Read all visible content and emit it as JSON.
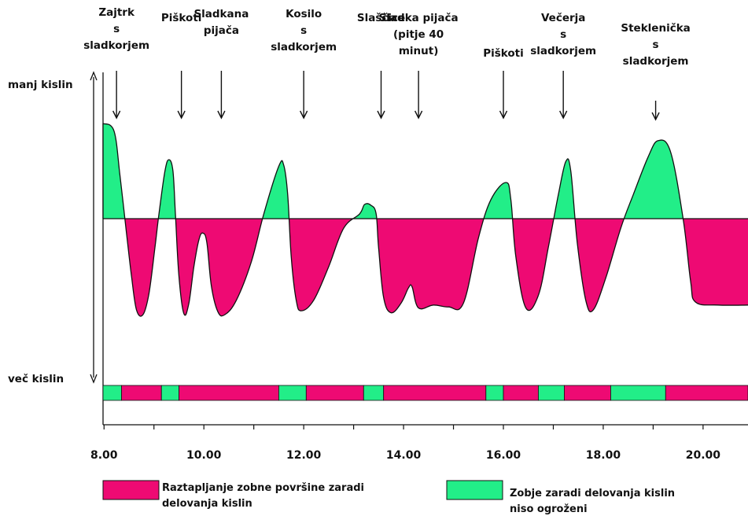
{
  "chart_data": {
    "type": "area",
    "title": "",
    "xlabel": "",
    "ylabel": "",
    "y_axis_labels": {
      "top": "manj kislin",
      "bottom": "več kislin"
    },
    "x_ticks": [
      "8.00",
      "10.00",
      "12.00",
      "14.00",
      "16.00",
      "18.00",
      "20.00"
    ],
    "x_range_hours": [
      7.98,
      20.9
    ],
    "y_range": [
      -1,
      1
    ],
    "baseline_value": 0,
    "colors": {
      "above": "#22ee88",
      "below": "#ee0a73",
      "outline": "#111111"
    },
    "events": [
      {
        "label": "Zajtrk\ns\nsladkorjem",
        "time": 8.25
      },
      {
        "label": "Piškoti",
        "time": 9.55
      },
      {
        "label": "Sladkana\npijača",
        "time": 10.35
      },
      {
        "label": "Kosilo\ns\nsladkorjem",
        "time": 12.0
      },
      {
        "label": "Slaščice",
        "time": 13.55
      },
      {
        "label": "Sladka pijača\n(pitje 40\nminut)",
        "time": 14.3
      },
      {
        "label": "Piškoti",
        "time": 16.0
      },
      {
        "label": "Večerja\ns\nsladkorjem",
        "time": 17.2
      },
      {
        "label": "Steklenička\ns\nsladkorjem",
        "time": 19.05
      }
    ],
    "series": [
      {
        "points": [
          [
            7.98,
            1.0
          ],
          [
            8.2,
            0.92
          ],
          [
            8.32,
            0.45
          ],
          [
            8.45,
            -0.15
          ],
          [
            8.55,
            -0.6
          ],
          [
            8.65,
            -0.95
          ],
          [
            8.78,
            -1.0
          ],
          [
            8.9,
            -0.78
          ],
          [
            9.02,
            -0.3
          ],
          [
            9.1,
            0.05
          ],
          [
            9.22,
            0.5
          ],
          [
            9.3,
            0.62
          ],
          [
            9.38,
            0.5
          ],
          [
            9.43,
            0.05
          ],
          [
            9.5,
            -0.6
          ],
          [
            9.6,
            -0.99
          ],
          [
            9.7,
            -0.88
          ],
          [
            9.8,
            -0.5
          ],
          [
            9.9,
            -0.22
          ],
          [
            9.98,
            -0.15
          ],
          [
            10.06,
            -0.25
          ],
          [
            10.15,
            -0.7
          ],
          [
            10.28,
            -0.97
          ],
          [
            10.42,
            -1.0
          ],
          [
            10.65,
            -0.85
          ],
          [
            10.95,
            -0.45
          ],
          [
            11.2,
            0.05
          ],
          [
            11.5,
            0.55
          ],
          [
            11.6,
            0.56
          ],
          [
            11.68,
            0.25
          ],
          [
            11.75,
            -0.4
          ],
          [
            11.85,
            -0.85
          ],
          [
            11.95,
            -0.96
          ],
          [
            12.2,
            -0.85
          ],
          [
            12.5,
            -0.5
          ],
          [
            12.8,
            -0.1
          ],
          [
            13.12,
            0.05
          ],
          [
            13.22,
            0.15
          ],
          [
            13.35,
            0.14
          ],
          [
            13.45,
            0.05
          ],
          [
            13.5,
            -0.3
          ],
          [
            13.6,
            -0.82
          ],
          [
            13.75,
            -0.98
          ],
          [
            13.95,
            -0.88
          ],
          [
            14.1,
            -0.72
          ],
          [
            14.17,
            -0.71
          ],
          [
            14.3,
            -0.93
          ],
          [
            14.6,
            -0.9
          ],
          [
            14.9,
            -0.92
          ],
          [
            15.2,
            -0.88
          ],
          [
            15.5,
            -0.2
          ],
          [
            15.75,
            0.2
          ],
          [
            16.05,
            0.38
          ],
          [
            16.15,
            0.2
          ],
          [
            16.25,
            -0.4
          ],
          [
            16.45,
            -0.93
          ],
          [
            16.7,
            -0.8
          ],
          [
            16.9,
            -0.3
          ],
          [
            17.1,
            0.25
          ],
          [
            17.25,
            0.6
          ],
          [
            17.35,
            0.5
          ],
          [
            17.48,
            -0.25
          ],
          [
            17.65,
            -0.85
          ],
          [
            17.8,
            -0.95
          ],
          [
            18.05,
            -0.62
          ],
          [
            18.35,
            -0.1
          ],
          [
            18.6,
            0.25
          ],
          [
            18.9,
            0.65
          ],
          [
            19.1,
            0.82
          ],
          [
            19.35,
            0.7
          ],
          [
            19.6,
            0.0
          ],
          [
            19.75,
            -0.65
          ],
          [
            19.85,
            -0.87
          ],
          [
            20.3,
            -0.9
          ],
          [
            20.9,
            -0.9
          ]
        ]
      }
    ],
    "legend": {
      "placement": "bottom",
      "items": [
        {
          "color": "#ee0a73",
          "text": "Raztapljanje zobne površine zaradi\ndelovanja kislin"
        },
        {
          "color": "#22ee88",
          "text": "Zobje zaradi delovanja kislin\nniso ogroženi"
        }
      ]
    },
    "timeline_bar": [
      {
        "state": "safe",
        "start": 7.98,
        "end": 8.35
      },
      {
        "state": "acid",
        "start": 8.35,
        "end": 9.15
      },
      {
        "state": "safe",
        "start": 9.15,
        "end": 9.5
      },
      {
        "state": "acid",
        "start": 9.5,
        "end": 11.5
      },
      {
        "state": "safe",
        "start": 11.5,
        "end": 12.05
      },
      {
        "state": "acid",
        "start": 12.05,
        "end": 13.2
      },
      {
        "state": "safe",
        "start": 13.2,
        "end": 13.6
      },
      {
        "state": "acid",
        "start": 13.6,
        "end": 15.65
      },
      {
        "state": "safe",
        "start": 15.65,
        "end": 16.0
      },
      {
        "state": "acid",
        "start": 16.0,
        "end": 16.7
      },
      {
        "state": "safe",
        "start": 16.7,
        "end": 17.22
      },
      {
        "state": "acid",
        "start": 17.22,
        "end": 18.15
      },
      {
        "state": "safe",
        "start": 18.15,
        "end": 19.25
      },
      {
        "state": "acid",
        "start": 19.25,
        "end": 20.9
      }
    ]
  }
}
